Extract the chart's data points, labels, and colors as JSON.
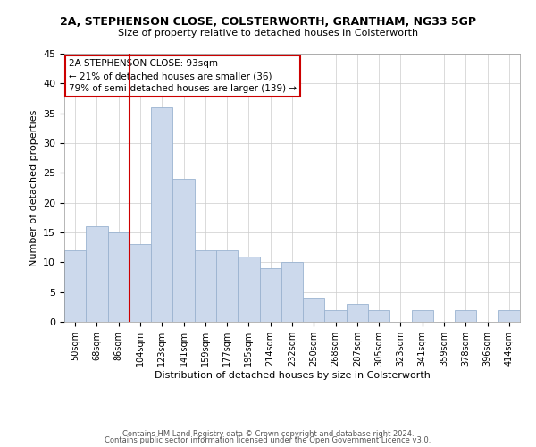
{
  "title1": "2A, STEPHENSON CLOSE, COLSTERWORTH, GRANTHAM, NG33 5GP",
  "title2": "Size of property relative to detached houses in Colsterworth",
  "xlabel": "Distribution of detached houses by size in Colsterworth",
  "ylabel": "Number of detached properties",
  "bar_labels": [
    "50sqm",
    "68sqm",
    "86sqm",
    "104sqm",
    "123sqm",
    "141sqm",
    "159sqm",
    "177sqm",
    "195sqm",
    "214sqm",
    "232sqm",
    "250sqm",
    "268sqm",
    "287sqm",
    "305sqm",
    "323sqm",
    "341sqm",
    "359sqm",
    "378sqm",
    "396sqm",
    "414sqm"
  ],
  "bar_values": [
    12,
    16,
    15,
    13,
    36,
    24,
    12,
    12,
    11,
    9,
    10,
    4,
    2,
    3,
    2,
    0,
    2,
    0,
    2,
    0,
    2
  ],
  "bar_color": "#ccd9ec",
  "bar_edge_color": "#9ab3d0",
  "vline_color": "#cc0000",
  "vline_x_index": 2,
  "ylim": [
    0,
    45
  ],
  "yticks": [
    0,
    5,
    10,
    15,
    20,
    25,
    30,
    35,
    40,
    45
  ],
  "annotation_line1": "2A STEPHENSON CLOSE: 93sqm",
  "annotation_line2": "← 21% of detached houses are smaller (36)",
  "annotation_line3": "79% of semi-detached houses are larger (139) →",
  "annotation_box_color": "#ffffff",
  "annotation_box_edge": "#cc0000",
  "footer1": "Contains HM Land Registry data © Crown copyright and database right 2024.",
  "footer2": "Contains public sector information licensed under the Open Government Licence v3.0.",
  "background_color": "#ffffff",
  "grid_color": "#cccccc"
}
